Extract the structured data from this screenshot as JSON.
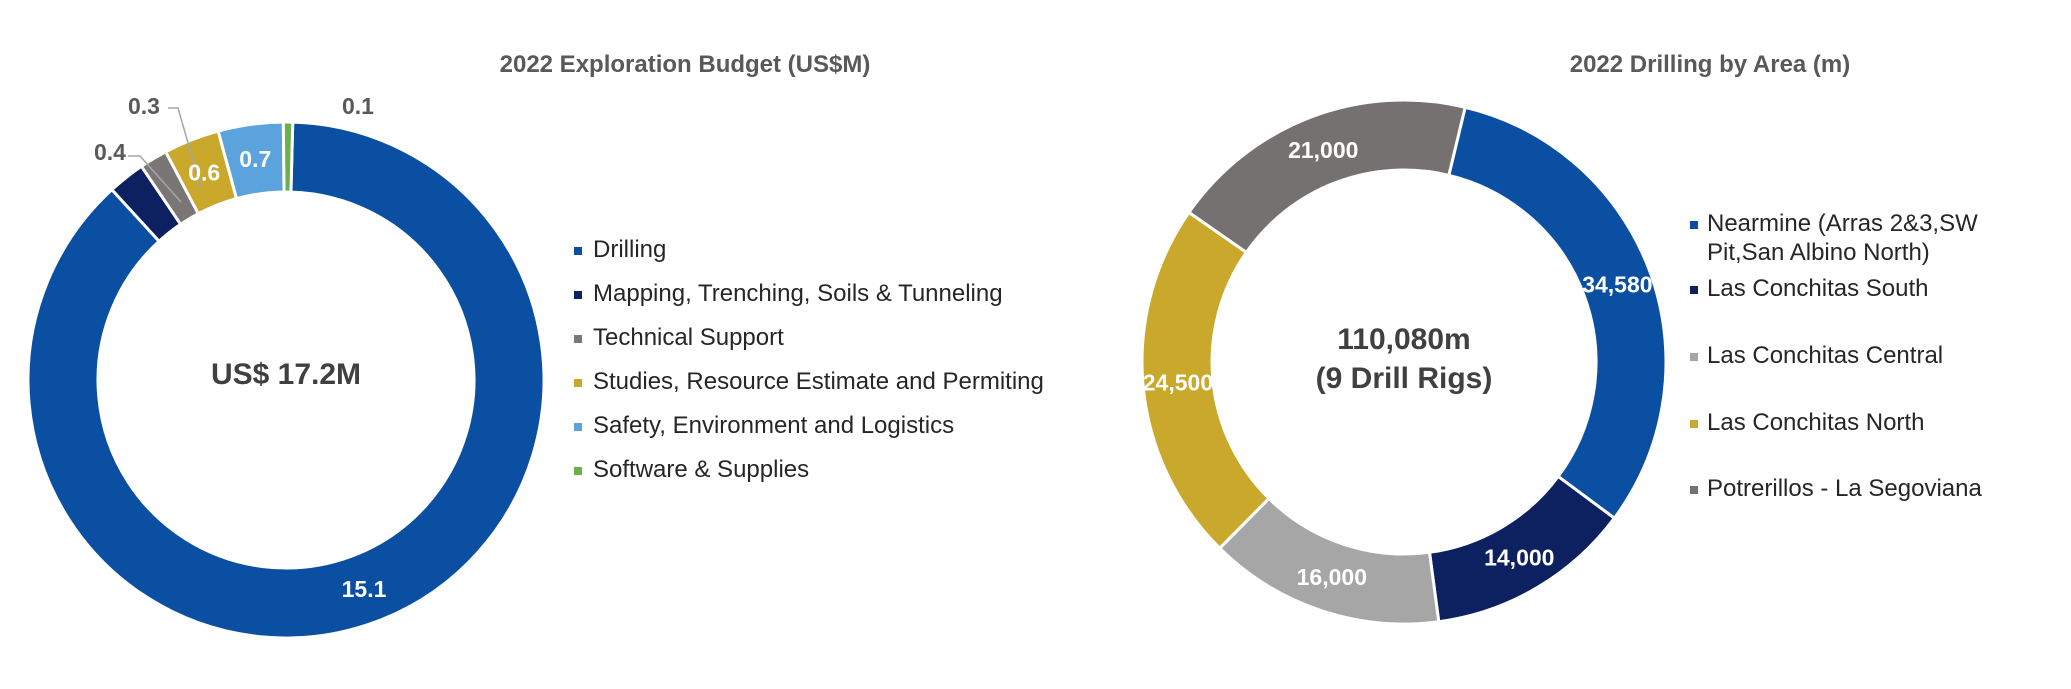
{
  "chart_data": [
    {
      "type": "pie",
      "title": "2022 Exploration Budget (US$M)",
      "center_label": "US$ 17.2M",
      "categories": [
        "Drilling",
        "Mapping, Trenching, Soils & Tunneling",
        "Technical Support",
        "Studies, Resource Estimate and Permiting",
        "Safety, Environment and Logistics",
        "Software & Supplies"
      ],
      "values": [
        15.1,
        0.4,
        0.3,
        0.6,
        0.7,
        0.1
      ],
      "value_labels": [
        "15.1",
        "0.4",
        "0.3",
        "0.6",
        "0.7",
        "0.1"
      ],
      "colors": [
        "#0b4fa3",
        "#0d2060",
        "#7a7676",
        "#c9a82c",
        "#5ba3dd",
        "#6ab04c"
      ],
      "legend_position": "right"
    },
    {
      "type": "pie",
      "title": "2022 Drilling by Area (m)",
      "center_label": [
        "110,080m",
        "(9 Drill Rigs)"
      ],
      "categories": [
        "Nearmine (Arras 2&3,SW Pit,San Albino North)",
        "Las Conchitas South",
        "Las Conchitas Central",
        "Las Conchitas North",
        "Potrerillos - La Segoviana"
      ],
      "legend_lines": [
        [
          "Nearmine (Arras 2&3,SW",
          "Pit,San Albino North)"
        ],
        [
          "Las Conchitas South"
        ],
        [
          "Las Conchitas Central"
        ],
        [
          "Las Conchitas North"
        ],
        [
          "Potrerillos - La Segoviana"
        ]
      ],
      "values": [
        34580,
        14000,
        16000,
        24500,
        21000
      ],
      "value_labels": [
        "34,580",
        "14,000",
        "16,000",
        "24,500",
        "21,000"
      ],
      "colors": [
        "#0b4fa3",
        "#0d2060",
        "#a6a6a6",
        "#c9a82c",
        "#767171"
      ],
      "legend_position": "right"
    }
  ]
}
